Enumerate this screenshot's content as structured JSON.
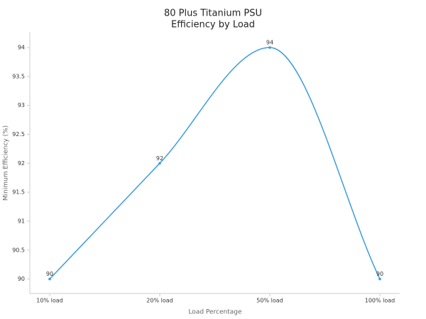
{
  "chart_data": {
    "type": "line",
    "title": [
      "80 Plus Titanium PSU",
      "Efficiency by Load"
    ],
    "x_label": "Load Percentage",
    "y_label": "Minimum Efficiency (%)",
    "categories": [
      "10% load",
      "20% load",
      "50% load",
      "100% load"
    ],
    "series": [
      {
        "name": "Minimum Efficiency",
        "color": "#3b9ddd",
        "values": [
          90,
          92,
          94,
          90
        ]
      }
    ],
    "ylim": [
      89.75,
      94.27
    ],
    "yticks": [
      90,
      90.5,
      91,
      91.5,
      92,
      92.5,
      93,
      93.5,
      94
    ],
    "smooth": true
  }
}
